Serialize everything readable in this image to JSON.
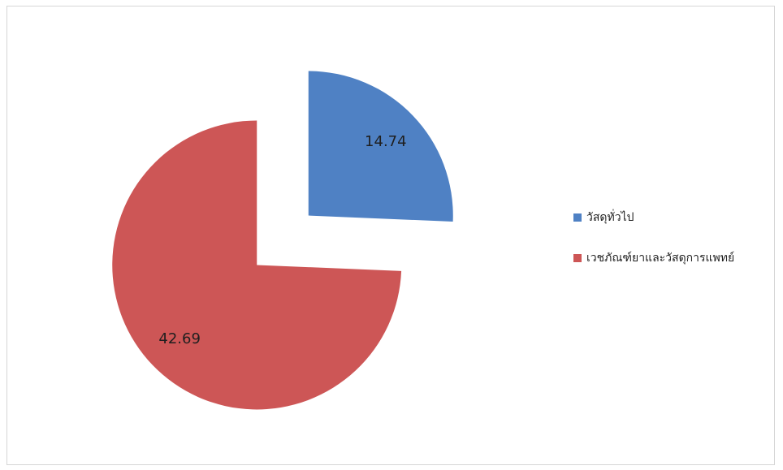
{
  "chart_data": {
    "type": "pie",
    "categories": [
      "วัสดุทั่วไป",
      "เวชภัณฑ์ยาและวัสดุการแพทย์"
    ],
    "values": [
      14.74,
      42.69
    ],
    "colors": [
      "#4F81C4",
      "#CD5656"
    ],
    "data_labels": true,
    "exploded": true,
    "legend": "right"
  }
}
